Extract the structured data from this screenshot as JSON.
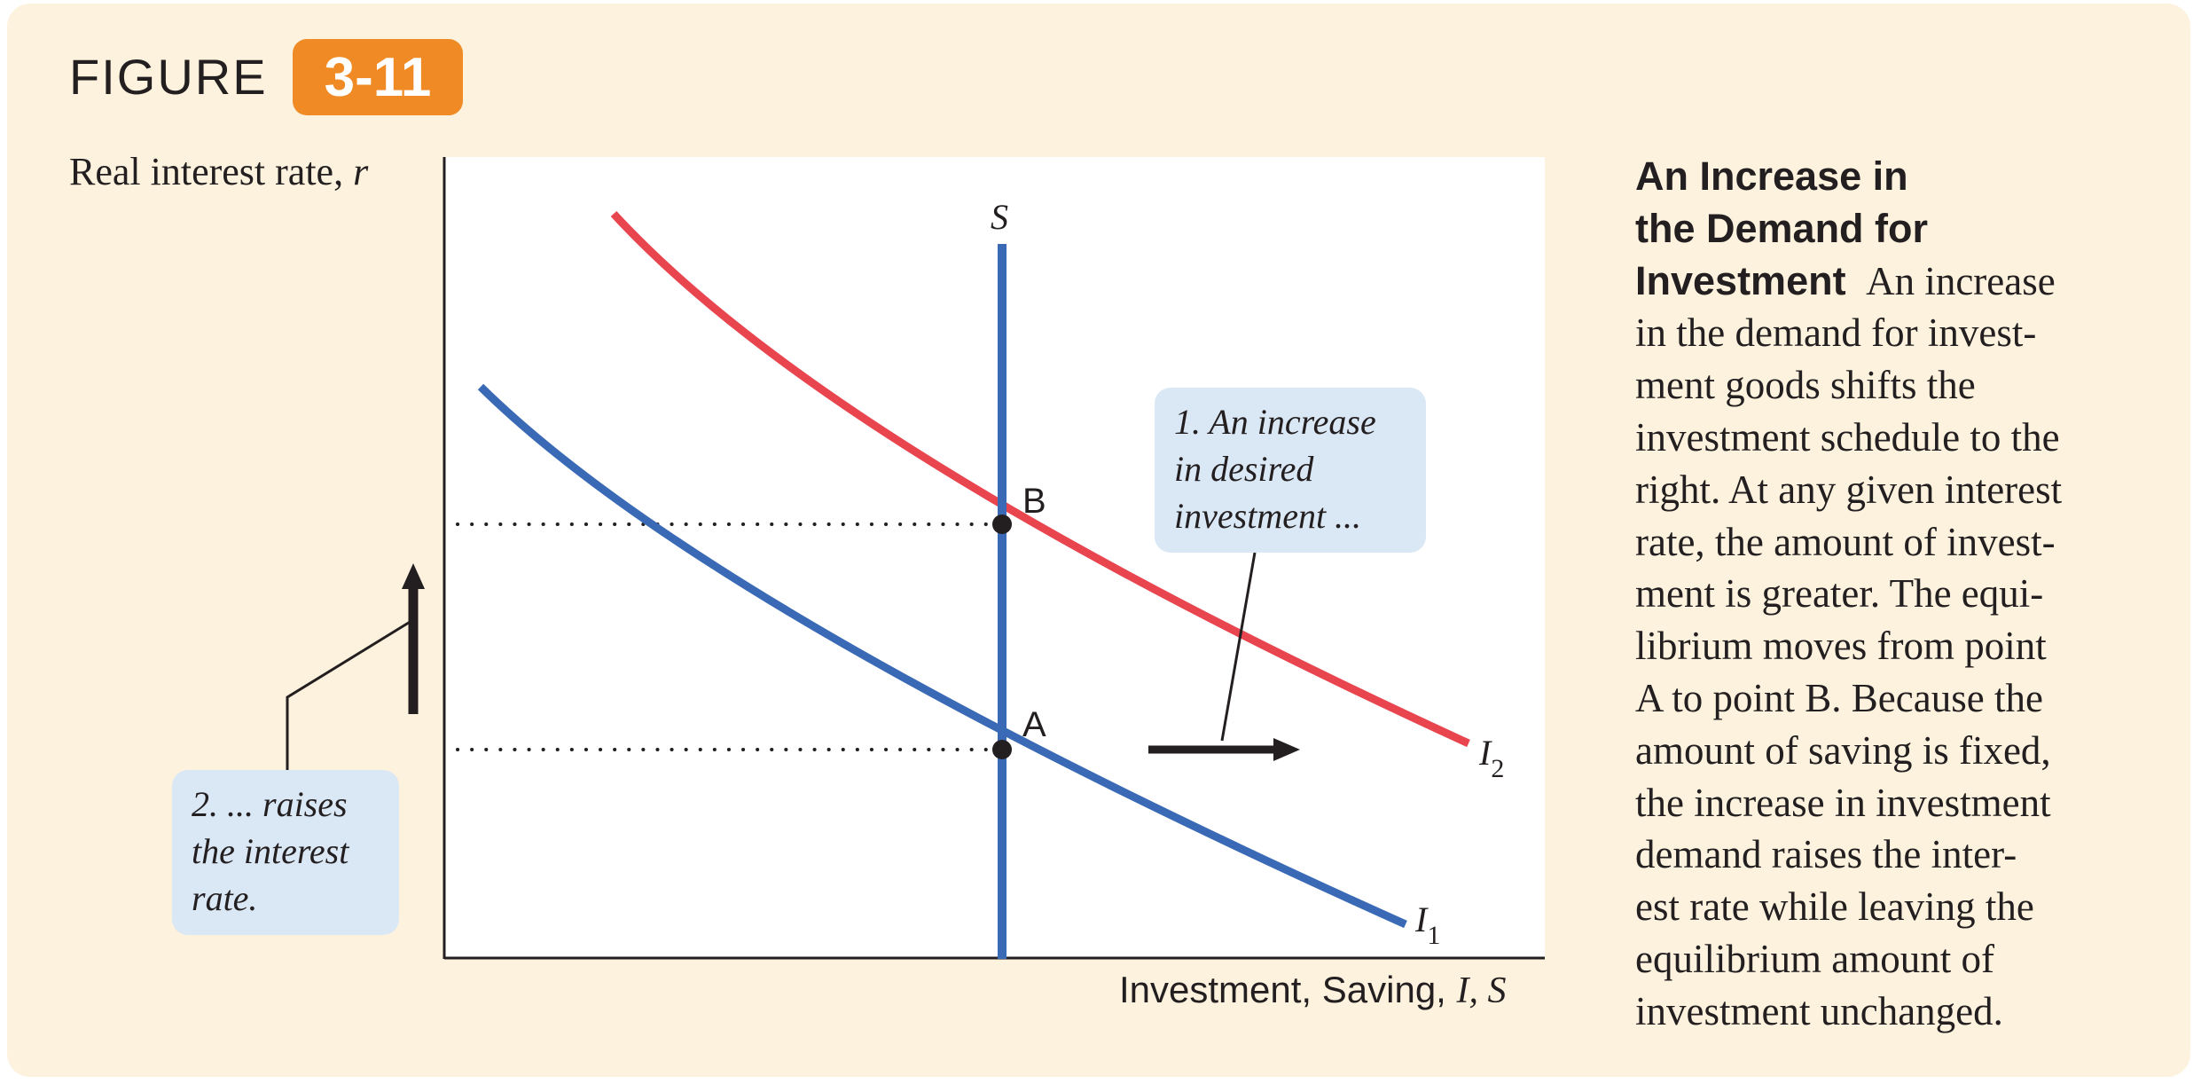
{
  "figure": {
    "word": "FIGURE",
    "number": "3-11"
  },
  "axes": {
    "y_label_text": "Real interest rate, ",
    "y_label_var": "r",
    "x_label_text": "Investment, Saving, ",
    "x_label_var": "I, S"
  },
  "curves": {
    "saving": "S",
    "investment_1": {
      "letter": "I",
      "sub": "1"
    },
    "investment_2": {
      "letter": "I",
      "sub": "2"
    }
  },
  "points": {
    "a": "A",
    "b": "B"
  },
  "callout_1": [
    "1. An increase",
    "in desired",
    "investment ..."
  ],
  "callout_2": [
    "2. ... raises",
    "the interest",
    "rate."
  ],
  "caption": {
    "title_lines": [
      "An Increase in",
      "the Demand for",
      "Investment"
    ],
    "body_first": "An increase",
    "body_lines": [
      "in the demand for invest-",
      "ment goods shifts the",
      "investment schedule to the",
      "right. At any given interest",
      "rate, the amount of invest-",
      "ment is greater. The equi-",
      "librium moves from point",
      "A to point B. Because the",
      "amount of saving is fixed,",
      "the increase in investment",
      "demand raises the inter-",
      "est rate while leaving the",
      "equilibrium amount of",
      "investment unchanged."
    ]
  },
  "colors": {
    "saving_line": "#3a6ab6",
    "investment_1": "#3a6ab6",
    "investment_2": "#e8454f",
    "badge": "#f08a24",
    "callout_fill": "#dae7f5",
    "panel": "#fcf2de"
  }
}
